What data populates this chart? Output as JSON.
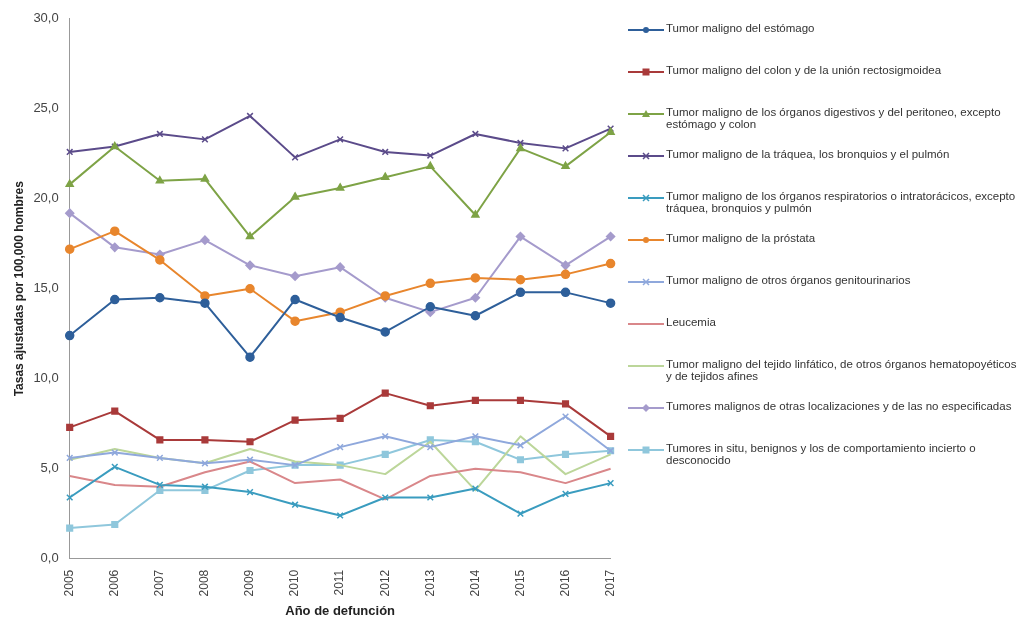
{
  "chart_data": {
    "type": "line",
    "xlabel": "Año de defunción",
    "ylabel": "Tasas ajustadas por 100,000 hombres",
    "categories": [
      "2005",
      "2006",
      "2007",
      "2008",
      "2009",
      "2010",
      "2011",
      "2012",
      "2013",
      "2014",
      "2015",
      "2016",
      "2017"
    ],
    "ylim": [
      0,
      30
    ],
    "yticks": [
      {
        "value": 0,
        "label": "0,0"
      },
      {
        "value": 5,
        "label": "5,0"
      },
      {
        "value": 10,
        "label": "10,0"
      },
      {
        "value": 15,
        "label": "15,0"
      },
      {
        "value": 20,
        "label": "20,0"
      },
      {
        "value": 25,
        "label": "25,0"
      },
      {
        "value": 30,
        "label": "30,0"
      }
    ],
    "grid": false,
    "legend": "right",
    "line_style": "solid",
    "series": [
      {
        "name": "Tumor maligno del estómago",
        "color": "#2e5f9a",
        "marker": "circle",
        "values": [
          12.4,
          14.4,
          14.5,
          14.2,
          11.2,
          14.4,
          13.4,
          12.6,
          14.0,
          13.5,
          14.8,
          14.8,
          14.2
        ]
      },
      {
        "name": "Tumor maligno del colon y de la unión rectosigmoidea",
        "color": "#a93a3a",
        "marker": "square",
        "values": [
          7.3,
          8.2,
          6.6,
          6.6,
          6.5,
          7.7,
          7.8,
          9.2,
          8.5,
          8.8,
          8.8,
          8.6,
          6.8
        ]
      },
      {
        "name": "Tumor maligno de los órganos digestivos y del peritoneo, excepto estómago y colon",
        "color": "#7ea346",
        "marker": "triangle",
        "values": [
          20.8,
          22.9,
          21.0,
          21.1,
          17.9,
          20.1,
          20.6,
          21.2,
          21.8,
          19.1,
          22.8,
          21.8,
          23.7
        ]
      },
      {
        "name": "Tumor maligno de la tráquea, los bronquios y el pulmón",
        "color": "#5b4b8a",
        "marker": "cross",
        "values": [
          22.6,
          22.9,
          23.6,
          23.3,
          24.6,
          22.3,
          23.3,
          22.6,
          22.4,
          23.6,
          23.1,
          22.8,
          23.9
        ]
      },
      {
        "name": "Tumor maligno de los órganos respiratorios o intratorácicos, excepto tráquea, bronquios y pulmón",
        "color": "#3a9cbf",
        "marker": "cross",
        "values": [
          3.4,
          5.1,
          4.1,
          4.0,
          3.7,
          3.0,
          2.4,
          3.4,
          3.4,
          3.9,
          2.5,
          3.6,
          4.2
        ]
      },
      {
        "name": "Tumor maligno de la próstata",
        "color": "#e8862d",
        "marker": "circle",
        "values": [
          17.2,
          18.2,
          16.6,
          14.6,
          15.0,
          13.2,
          13.7,
          14.6,
          15.3,
          15.6,
          15.5,
          15.8,
          16.4
        ]
      },
      {
        "name": "Tumor maligno de otros órganos genitourinarios",
        "color": "#8fa8dc",
        "marker": "cross",
        "values": [
          5.6,
          5.9,
          5.6,
          5.3,
          5.5,
          5.2,
          6.2,
          6.8,
          6.2,
          6.8,
          6.3,
          7.9,
          6.0
        ]
      },
      {
        "name": "Leucemia",
        "color": "#d9878a",
        "marker": "none",
        "values": [
          4.6,
          4.1,
          4.0,
          4.8,
          5.4,
          4.2,
          4.4,
          3.3,
          4.6,
          5.0,
          4.8,
          4.2,
          5.0
        ]
      },
      {
        "name": "Tumor maligno del tejido linfático, de otros órganos hematopoyéticos y de tejidos afines",
        "color": "#bcd69a",
        "marker": "none",
        "values": [
          5.5,
          6.1,
          5.6,
          5.3,
          6.1,
          5.4,
          5.2,
          4.7,
          6.5,
          3.8,
          6.8,
          4.7,
          5.8
        ]
      },
      {
        "name": "Tumores malignos de otras localizaciones y de las no especificadas",
        "color": "#a59bcc",
        "marker": "diamond",
        "values": [
          19.2,
          17.3,
          16.9,
          17.7,
          16.3,
          15.7,
          16.2,
          14.5,
          13.7,
          14.5,
          17.9,
          16.3,
          17.9
        ]
      },
      {
        "name": "Tumores in situ, benignos y los de comportamiento incierto o desconocido",
        "color": "#8fc7dc",
        "marker": "square",
        "values": [
          1.7,
          1.9,
          3.8,
          3.8,
          4.9,
          5.2,
          5.2,
          5.8,
          6.6,
          6.5,
          5.5,
          5.8,
          6.0
        ]
      }
    ]
  }
}
